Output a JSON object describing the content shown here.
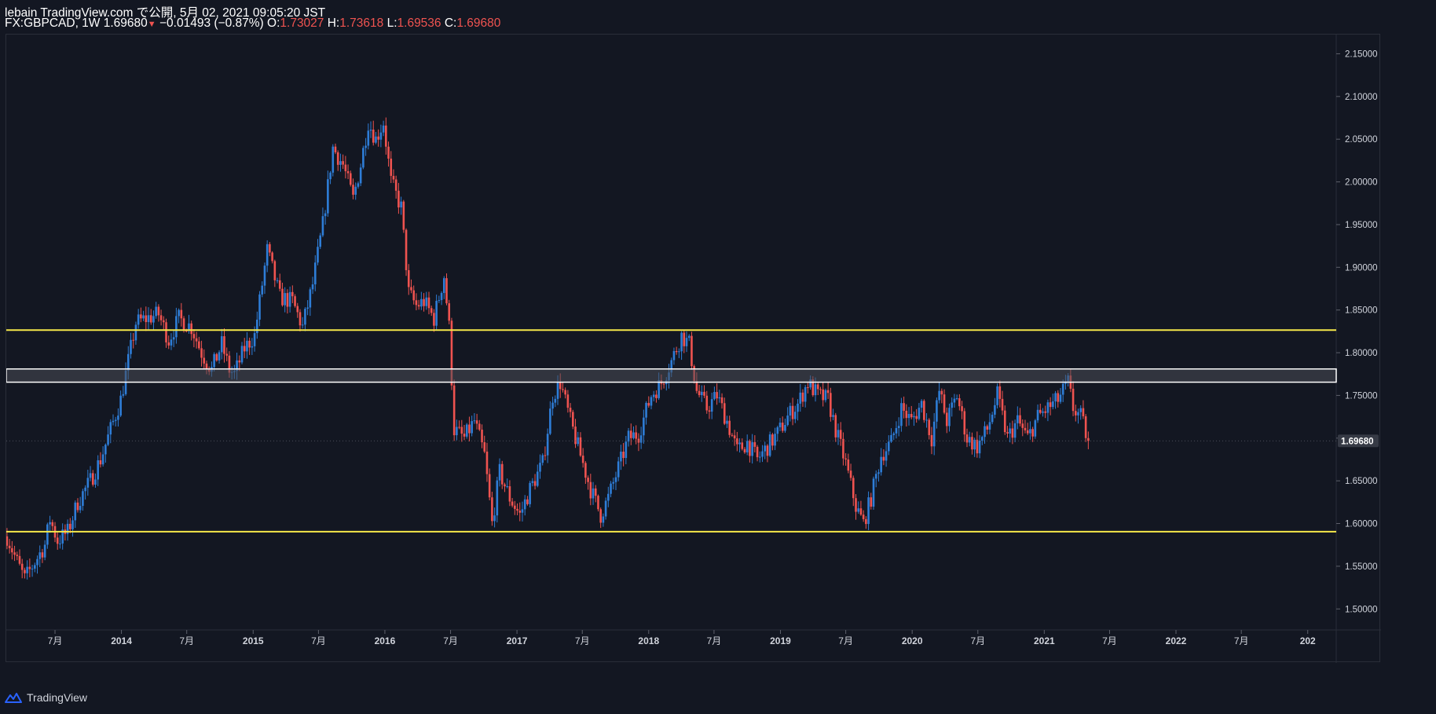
{
  "header": {
    "line1": "lebain TradingView.com で公開, 5月 02, 2021 09:05:20 JST",
    "symbol": "FX:GBPCAD, 1W",
    "last": "1.69680",
    "change_arrow": "▼",
    "change": "−0.01493 (−0.87%)",
    "o_label": "O:",
    "o_value": "1.73027",
    "h_label": "H:",
    "h_value": "1.73618",
    "l_label": "L:",
    "l_value": "1.69536",
    "c_label": "C:",
    "c_value": "1.69680"
  },
  "footer": {
    "brand": "TradingView"
  },
  "colors": {
    "background": "#131722",
    "up": "#2e7dd7",
    "down": "#ef5350",
    "support_resistance": "#f5e84a",
    "zone_border": "#ffffff",
    "zone_fill": "#4a4d55",
    "price_label_bg": "#363a45"
  },
  "chart_data": {
    "type": "candlestick",
    "symbol": "FX:GBPCAD",
    "interval": "1W",
    "y_ticks": [
      "2.15000",
      "2.10000",
      "2.05000",
      "2.00000",
      "1.95000",
      "1.90000",
      "1.85000",
      "1.80000",
      "1.75000",
      "1.70000",
      "1.65000",
      "1.60000",
      "1.55000",
      "1.50000"
    ],
    "y_tick_values": [
      2.15,
      2.1,
      2.05,
      2.0,
      1.95,
      1.9,
      1.85,
      1.8,
      1.75,
      1.7,
      1.65,
      1.6,
      1.55,
      1.5
    ],
    "ylim": [
      1.4754,
      2.1725
    ],
    "xlim": [
      "2013-02-16",
      "2023-03-21"
    ],
    "x_ticks": [
      {
        "label": "7月",
        "date": "2013-07-01"
      },
      {
        "label": "2014",
        "date": "2014-01-01"
      },
      {
        "label": "7月",
        "date": "2014-07-01"
      },
      {
        "label": "2015",
        "date": "2015-01-01"
      },
      {
        "label": "7月",
        "date": "2015-07-01"
      },
      {
        "label": "2016",
        "date": "2016-01-01"
      },
      {
        "label": "7月",
        "date": "2016-07-01"
      },
      {
        "label": "2017",
        "date": "2017-01-01"
      },
      {
        "label": "7月",
        "date": "2017-07-01"
      },
      {
        "label": "2018",
        "date": "2018-01-01"
      },
      {
        "label": "7月",
        "date": "2018-07-01"
      },
      {
        "label": "2019",
        "date": "2019-01-01"
      },
      {
        "label": "7月",
        "date": "2019-07-01"
      },
      {
        "label": "2020",
        "date": "2020-01-01"
      },
      {
        "label": "7月",
        "date": "2020-07-01"
      },
      {
        "label": "2021",
        "date": "2021-01-01"
      },
      {
        "label": "7月",
        "date": "2021-07-01"
      },
      {
        "label": "2022",
        "date": "2022-01-01"
      },
      {
        "label": "7月",
        "date": "2022-07-01"
      },
      {
        "label": "202",
        "date": "2023-01-01"
      }
    ],
    "current_price": 1.6968,
    "current_price_label": "1.69680",
    "horizontal_lines": [
      1.8265,
      1.5905
    ],
    "zone": [
      1.7655,
      1.781
    ],
    "close_path": [
      [
        "2013-02-18",
        1.585
      ],
      [
        "2013-03-18",
        1.555
      ],
      [
        "2013-04-08",
        1.535
      ],
      [
        "2013-05-13",
        1.56
      ],
      [
        "2013-06-03",
        1.575
      ],
      [
        "2013-06-17",
        1.605
      ],
      [
        "2013-07-08",
        1.58
      ],
      [
        "2013-08-05",
        1.59
      ],
      [
        "2013-09-02",
        1.625
      ],
      [
        "2013-10-07",
        1.65
      ],
      [
        "2013-11-04",
        1.675
      ],
      [
        "2013-12-02",
        1.71
      ],
      [
        "2013-12-30",
        1.745
      ],
      [
        "2014-01-20",
        1.79
      ],
      [
        "2014-02-10",
        1.835
      ],
      [
        "2014-03-10",
        1.84
      ],
      [
        "2014-04-14",
        1.845
      ],
      [
        "2014-05-12",
        1.815
      ],
      [
        "2014-06-09",
        1.84
      ],
      [
        "2014-07-14",
        1.83
      ],
      [
        "2014-08-11",
        1.8
      ],
      [
        "2014-09-08",
        1.78
      ],
      [
        "2014-10-06",
        1.81
      ],
      [
        "2014-10-27",
        1.78
      ],
      [
        "2014-11-10",
        1.775
      ],
      [
        "2014-12-08",
        1.805
      ],
      [
        "2015-01-05",
        1.82
      ],
      [
        "2015-02-09",
        1.92
      ],
      [
        "2015-03-16",
        1.865
      ],
      [
        "2015-04-20",
        1.86
      ],
      [
        "2015-05-18",
        1.83
      ],
      [
        "2015-06-15",
        1.88
      ],
      [
        "2015-07-13",
        1.95
      ],
      [
        "2015-08-10",
        2.04
      ],
      [
        "2015-09-07",
        2.02
      ],
      [
        "2015-10-05",
        1.98
      ],
      [
        "2015-10-26",
        2.02
      ],
      [
        "2015-11-16",
        2.07
      ],
      [
        "2015-12-07",
        2.05
      ],
      [
        "2015-12-28",
        2.07
      ],
      [
        "2016-01-18",
        2.0
      ],
      [
        "2016-02-15",
        1.97
      ],
      [
        "2016-03-07",
        1.87
      ],
      [
        "2016-03-28",
        1.855
      ],
      [
        "2016-04-18",
        1.86
      ],
      [
        "2016-05-16",
        1.84
      ],
      [
        "2016-06-13",
        1.89
      ],
      [
        "2016-06-27",
        1.83
      ],
      [
        "2016-07-11",
        1.71
      ],
      [
        "2016-08-08",
        1.7
      ],
      [
        "2016-09-05",
        1.72
      ],
      [
        "2016-10-03",
        1.68
      ],
      [
        "2016-10-24",
        1.6
      ],
      [
        "2016-11-14",
        1.66
      ],
      [
        "2016-12-12",
        1.63
      ],
      [
        "2017-01-09",
        1.61
      ],
      [
        "2017-02-06",
        1.64
      ],
      [
        "2017-03-13",
        1.67
      ],
      [
        "2017-04-10",
        1.75
      ],
      [
        "2017-05-01",
        1.765
      ],
      [
        "2017-05-29",
        1.72
      ],
      [
        "2017-06-26",
        1.68
      ],
      [
        "2017-07-24",
        1.64
      ],
      [
        "2017-08-21",
        1.61
      ],
      [
        "2017-09-11",
        1.63
      ],
      [
        "2017-10-09",
        1.665
      ],
      [
        "2017-11-06",
        1.7
      ],
      [
        "2017-12-04",
        1.705
      ],
      [
        "2018-01-08",
        1.75
      ],
      [
        "2018-02-05",
        1.765
      ],
      [
        "2018-03-05",
        1.79
      ],
      [
        "2018-04-02",
        1.82
      ],
      [
        "2018-04-23",
        1.81
      ],
      [
        "2018-05-14",
        1.755
      ],
      [
        "2018-06-11",
        1.735
      ],
      [
        "2018-07-09",
        1.75
      ],
      [
        "2018-08-06",
        1.72
      ],
      [
        "2018-09-03",
        1.685
      ],
      [
        "2018-10-01",
        1.695
      ],
      [
        "2018-10-29",
        1.675
      ],
      [
        "2018-11-26",
        1.69
      ],
      [
        "2018-12-24",
        1.705
      ],
      [
        "2019-01-21",
        1.725
      ],
      [
        "2019-02-18",
        1.74
      ],
      [
        "2019-03-18",
        1.765
      ],
      [
        "2019-04-15",
        1.75
      ],
      [
        "2019-05-13",
        1.745
      ],
      [
        "2019-06-03",
        1.71
      ],
      [
        "2019-07-01",
        1.67
      ],
      [
        "2019-07-29",
        1.62
      ],
      [
        "2019-08-19",
        1.6
      ],
      [
        "2019-09-09",
        1.63
      ],
      [
        "2019-10-07",
        1.68
      ],
      [
        "2019-11-04",
        1.695
      ],
      [
        "2019-12-02",
        1.735
      ],
      [
        "2019-12-30",
        1.72
      ],
      [
        "2020-01-27",
        1.74
      ],
      [
        "2020-02-24",
        1.7
      ],
      [
        "2020-03-16",
        1.755
      ],
      [
        "2020-04-06",
        1.72
      ],
      [
        "2020-05-04",
        1.75
      ],
      [
        "2020-06-01",
        1.7
      ],
      [
        "2020-06-29",
        1.69
      ],
      [
        "2020-07-27",
        1.71
      ],
      [
        "2020-08-24",
        1.75
      ],
      [
        "2020-09-21",
        1.7
      ],
      [
        "2020-10-19",
        1.72
      ],
      [
        "2020-11-16",
        1.7
      ],
      [
        "2020-12-14",
        1.725
      ],
      [
        "2021-01-11",
        1.735
      ],
      [
        "2021-02-08",
        1.745
      ],
      [
        "2021-03-08",
        1.765
      ],
      [
        "2021-03-22",
        1.735
      ],
      [
        "2021-04-12",
        1.725
      ],
      [
        "2021-05-03",
        1.6968
      ]
    ]
  }
}
